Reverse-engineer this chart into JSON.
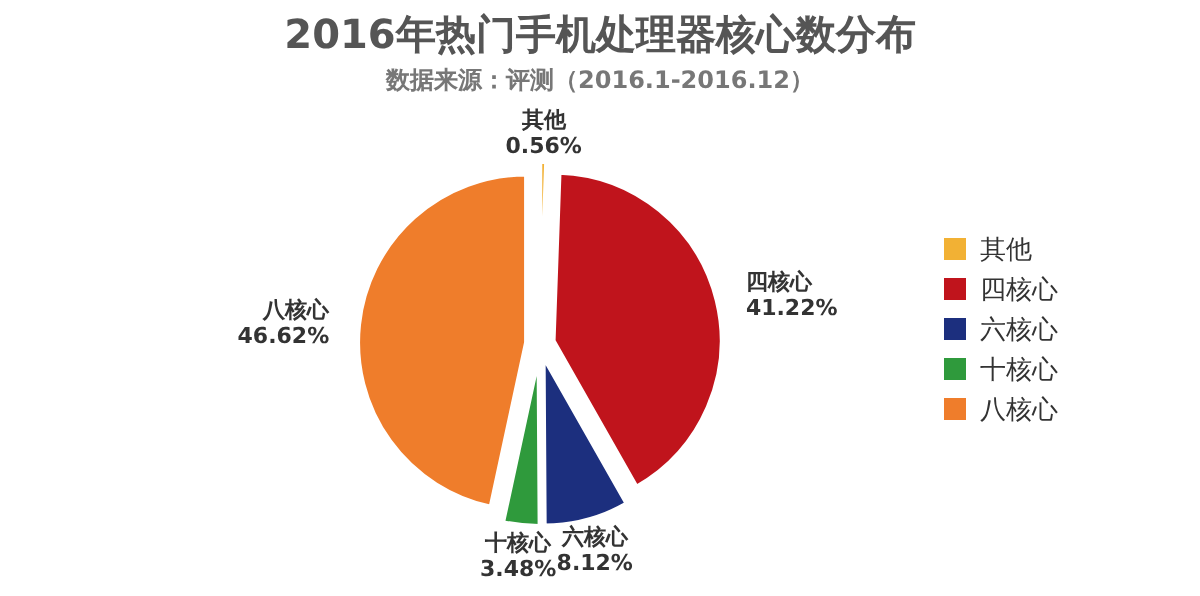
{
  "chart_data": {
    "type": "pie",
    "title": "2016年热门手机处理器核心数分布",
    "subtitle": "数据来源：评测（2016.1-2016.12）",
    "categories": [
      "其他",
      "四核心",
      "六核心",
      "十核心",
      "八核心"
    ],
    "values": [
      0.56,
      41.22,
      8.12,
      3.48,
      46.62
    ],
    "value_labels": [
      "0.56%",
      "41.22%",
      "8.12%",
      "3.48%",
      "46.62%"
    ],
    "colors": [
      "#f2b134",
      "#c0141c",
      "#1c2f7e",
      "#2f9a3c",
      "#ef7d2b"
    ],
    "legend": "right"
  }
}
